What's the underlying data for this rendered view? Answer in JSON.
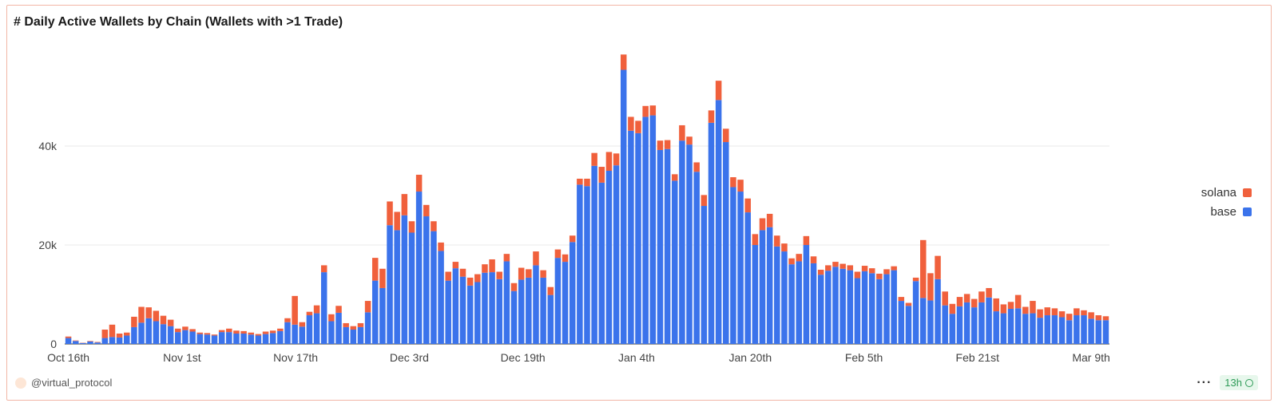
{
  "title": "# Daily Active Wallets by Chain (Wallets with >1 Trade)",
  "footer": {
    "author": "@virtual_protocol",
    "more": "···",
    "age": "13h"
  },
  "colors": {
    "base": "#3b73eb",
    "solana": "#f0603c",
    "grid": "#e9e9e9"
  },
  "chart_data": {
    "type": "bar",
    "stacked": true,
    "ylim": [
      0,
      60000
    ],
    "yticks": [
      0,
      20000,
      40000
    ],
    "ytick_labels": [
      "0",
      "20k",
      "40k"
    ],
    "xtick_labels": [
      "Oct 16th",
      "Nov 1st",
      "Nov 17th",
      "Dec 3rd",
      "Dec 19th",
      "Jan 4th",
      "Jan 20th",
      "Feb 5th",
      "Feb 21st",
      "Mar 9th"
    ],
    "legend": "right",
    "series": [
      {
        "name": "base",
        "values": [
          1200,
          600,
          200,
          500,
          300,
          1200,
          1400,
          1300,
          1700,
          3400,
          4300,
          5200,
          4600,
          4000,
          3600,
          2400,
          2800,
          2500,
          2000,
          1900,
          1700,
          2400,
          2400,
          2100,
          2100,
          1900,
          1700,
          2000,
          2200,
          2600,
          4400,
          3900,
          3500,
          5800,
          6200,
          14500,
          4600,
          6300,
          3400,
          2900,
          3400,
          6400,
          12800,
          11300,
          24000,
          23000,
          26000,
          22500,
          30800,
          25800,
          22800,
          18800,
          12800,
          15300,
          13600,
          11800,
          12500,
          14400,
          14500,
          13100,
          16700,
          10700,
          13000,
          13400,
          15900,
          13400,
          9900,
          17400,
          16600,
          20600,
          32200,
          31900,
          36000,
          32600,
          35000,
          36100,
          55400,
          43100,
          42600,
          45900,
          46200,
          39200,
          39400,
          33000,
          41100,
          40300,
          34800,
          27900,
          44700,
          49300,
          40800,
          31700,
          30800,
          26600,
          20000,
          23000,
          23600,
          19700,
          18700,
          16100,
          16700,
          20000,
          16300,
          14000,
          14800,
          15600,
          15200,
          14900,
          13300,
          14700,
          14300,
          13100,
          14100,
          14900,
          8700,
          7700,
          12700,
          9300,
          8800,
          13100,
          7800,
          6100,
          7600,
          8400,
          7400,
          8400,
          9400,
          6600,
          6200,
          7100,
          7200,
          6100,
          6200,
          5300,
          5800,
          5800,
          5400,
          4800,
          5800,
          5800,
          5100,
          4800,
          4800
        ],
        "color": "#3b73eb"
      },
      {
        "name": "solana",
        "values": [
          300,
          100,
          50,
          100,
          100,
          1700,
          2500,
          800,
          600,
          2100,
          3200,
          2200,
          2100,
          1700,
          1300,
          700,
          700,
          500,
          300,
          300,
          200,
          400,
          700,
          600,
          500,
          400,
          300,
          500,
          500,
          500,
          800,
          5800,
          900,
          700,
          1600,
          1400,
          1400,
          1400,
          800,
          700,
          800,
          2300,
          4600,
          3900,
          4800,
          3700,
          4300,
          2300,
          3400,
          2300,
          2000,
          1700,
          1800,
          1300,
          1600,
          1600,
          1600,
          1700,
          2600,
          1500,
          1500,
          1600,
          2400,
          1700,
          2800,
          1500,
          1600,
          1700,
          1500,
          1300,
          1200,
          1500,
          2600,
          3200,
          3800,
          2400,
          3100,
          2800,
          2500,
          2200,
          2000,
          1900,
          1800,
          1300,
          3100,
          1600,
          1900,
          2200,
          2500,
          3900,
          2700,
          2000,
          2400,
          2800,
          2200,
          2400,
          2700,
          2200,
          1600,
          1200,
          1500,
          1800,
          1400,
          1000,
          1100,
          1000,
          1000,
          1000,
          1300,
          1100,
          1000,
          1100,
          1000,
          800,
          800,
          600,
          700,
          11700,
          5500,
          4700,
          2800,
          2000,
          1900,
          1700,
          1700,
          2200,
          1900,
          2600,
          1800,
          1400,
          2700,
          1400,
          2500,
          1700,
          1600,
          1400,
          1200,
          1300,
          1400,
          1000,
          1300,
          1000,
          800,
          800
        ],
        "color": "#f0603c"
      }
    ]
  }
}
